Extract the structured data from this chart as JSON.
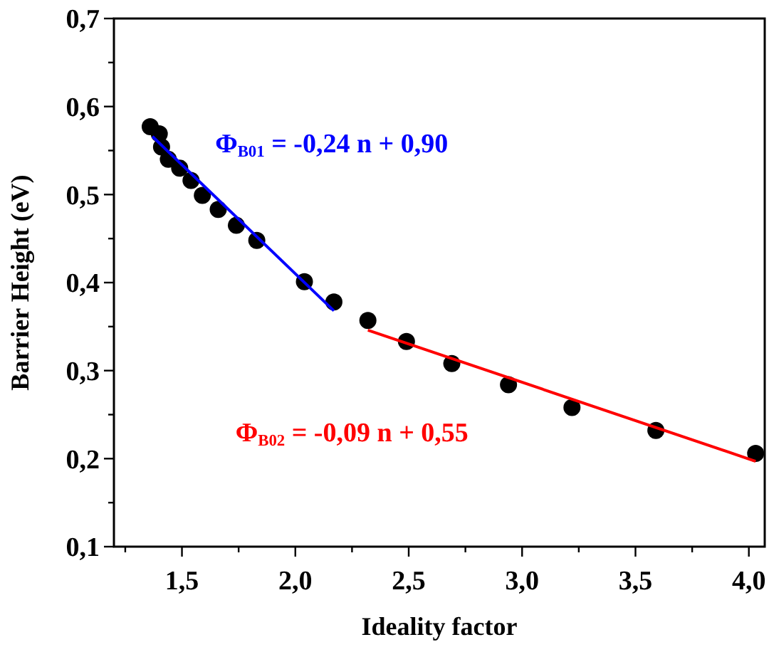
{
  "chart_data": {
    "type": "scatter",
    "xlabel": "Ideality factor",
    "ylabel": "Barrier Height (eV)",
    "xlim": [
      1.2,
      4.07
    ],
    "ylim": [
      0.1,
      0.7
    ],
    "xticks": [
      {
        "value": 1.25,
        "label": null
      },
      {
        "value": 1.5,
        "label": "1,5"
      },
      {
        "value": 1.75,
        "label": null
      },
      {
        "value": 2.0,
        "label": "2,0"
      },
      {
        "value": 2.25,
        "label": null
      },
      {
        "value": 2.5,
        "label": "2,5"
      },
      {
        "value": 2.75,
        "label": null
      },
      {
        "value": 3.0,
        "label": "3,0"
      },
      {
        "value": 3.25,
        "label": null
      },
      {
        "value": 3.5,
        "label": "3,5"
      },
      {
        "value": 3.75,
        "label": null
      },
      {
        "value": 4.0,
        "label": "4,0"
      }
    ],
    "yticks": [
      {
        "value": 0.1,
        "label": "0,1"
      },
      {
        "value": 0.15,
        "label": null
      },
      {
        "value": 0.2,
        "label": "0,2"
      },
      {
        "value": 0.25,
        "label": null
      },
      {
        "value": 0.3,
        "label": "0,3"
      },
      {
        "value": 0.35,
        "label": null
      },
      {
        "value": 0.4,
        "label": "0,4"
      },
      {
        "value": 0.45,
        "label": null
      },
      {
        "value": 0.5,
        "label": "0,5"
      },
      {
        "value": 0.55,
        "label": null
      },
      {
        "value": 0.6,
        "label": "0,6"
      },
      {
        "value": 0.65,
        "label": null
      },
      {
        "value": 0.7,
        "label": "0,7"
      }
    ],
    "grid": false,
    "marker": "circle",
    "series": [
      {
        "color": "#000000",
        "x": [
          1.36,
          1.4,
          1.41,
          1.44,
          1.49,
          1.54,
          1.59,
          1.66,
          1.74,
          1.83,
          2.04,
          2.17,
          2.32,
          2.49,
          2.69,
          2.94,
          3.22,
          3.59,
          4.03
        ],
        "values": [
          0.577,
          0.569,
          0.554,
          0.54,
          0.53,
          0.516,
          0.499,
          0.483,
          0.465,
          0.448,
          0.401,
          0.378,
          0.357,
          0.333,
          0.308,
          0.284,
          0.258,
          0.232,
          0.206
        ]
      },
      {
        "type": "line",
        "name": "Φ$_{B01}$ = -0,24 n + 0,90",
        "color": "#0000ff",
        "line_style": "solid",
        "marker": "none",
        "x": [
          1.37,
          2.17
        ],
        "values": [
          0.566,
          0.368
        ]
      },
      {
        "type": "line",
        "name": "Φ$_{B02}$ = -0,09 n + 0,55",
        "color": "#ff0000",
        "line_style": "solid",
        "marker": "none",
        "x": [
          2.32,
          4.03
        ],
        "values": [
          0.346,
          0.197
        ]
      }
    ]
  }
}
